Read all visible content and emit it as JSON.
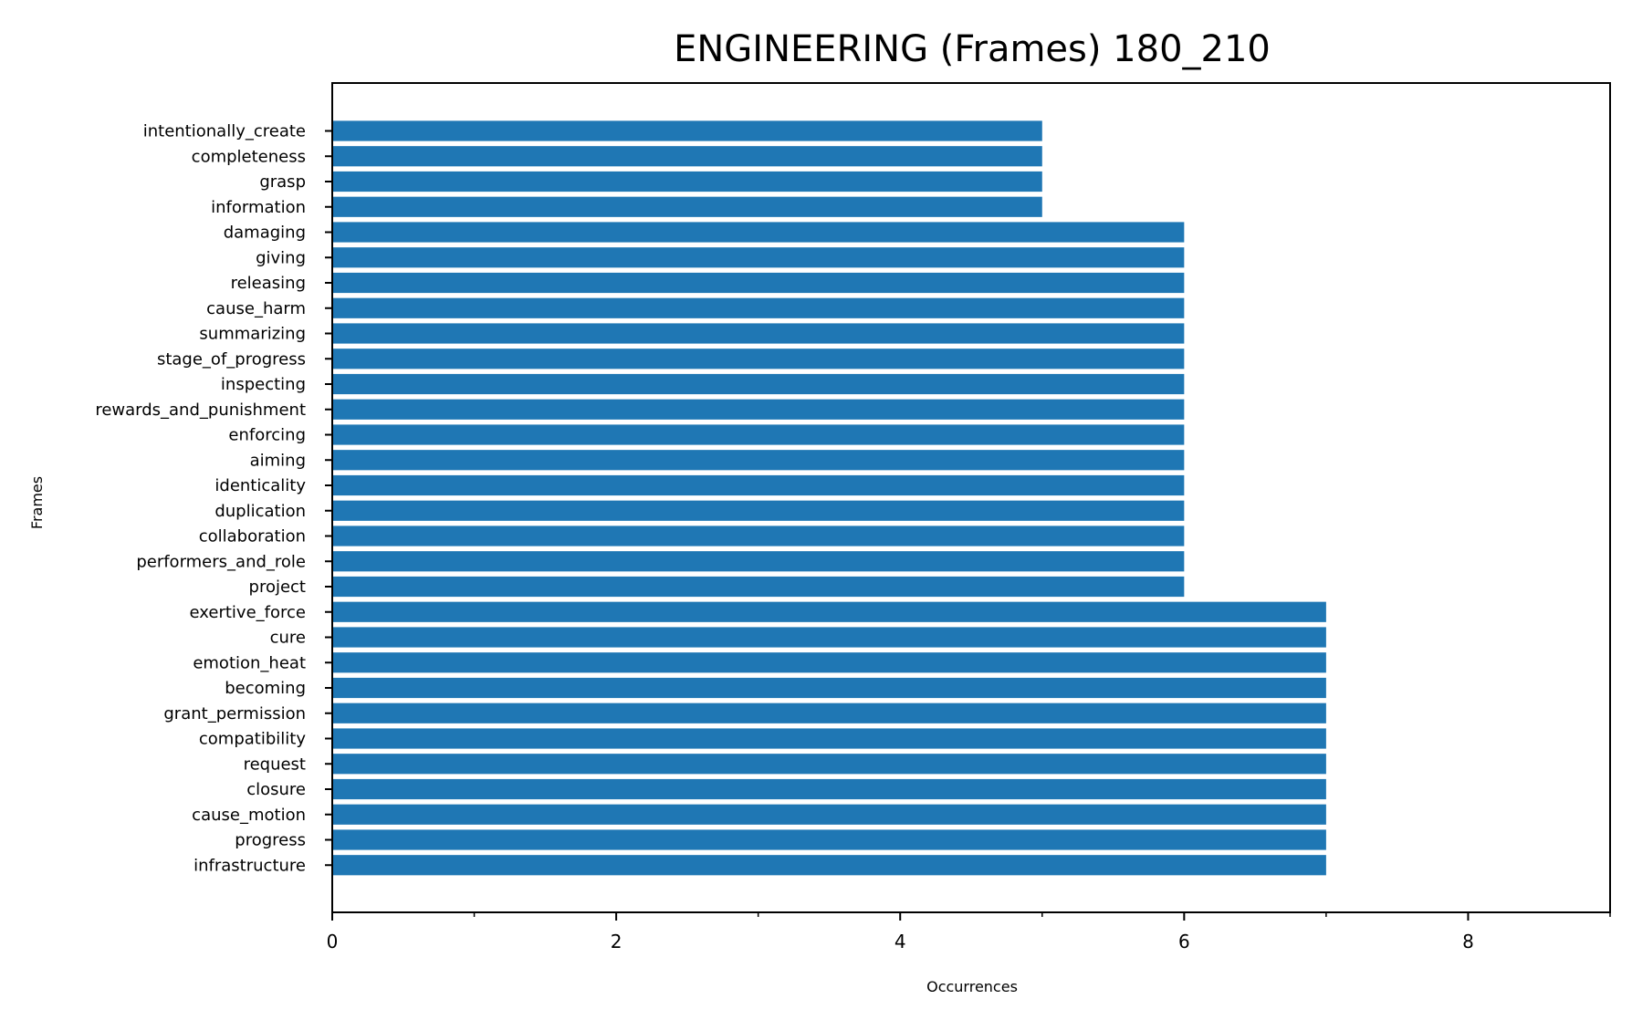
{
  "chart_data": {
    "type": "bar",
    "orientation": "horizontal",
    "title": "ENGINEERING (Frames) 180_210",
    "xlabel": "Occurrences",
    "ylabel": "Frames",
    "xlim": [
      0,
      9
    ],
    "xticks": [
      0,
      2,
      4,
      6,
      8
    ],
    "xtick_labels": [
      "0",
      "2",
      "4",
      "6",
      "8"
    ],
    "minor_xticks": [
      1,
      3,
      5,
      7,
      9
    ],
    "color": "#1f77b4",
    "grid": false,
    "legend": "none",
    "categories": [
      "intentionally_create",
      "completeness",
      "grasp",
      "information",
      "damaging",
      "giving",
      "releasing",
      "cause_harm",
      "summarizing",
      "stage_of_progress",
      "inspecting",
      "rewards_and_punishment",
      "enforcing",
      "aiming",
      "identicality",
      "duplication",
      "collaboration",
      "performers_and_role",
      "project",
      "exertive_force",
      "cure",
      "emotion_heat",
      "becoming",
      "grant_permission",
      "compatibility",
      "request",
      "closure",
      "cause_motion",
      "progress",
      "infrastructure"
    ],
    "values": [
      5,
      5,
      5,
      5,
      6,
      6,
      6,
      6,
      6,
      6,
      6,
      6,
      6,
      6,
      6,
      6,
      6,
      6,
      6,
      7,
      7,
      7,
      7,
      7,
      7,
      7,
      7,
      7,
      7,
      7
    ]
  }
}
